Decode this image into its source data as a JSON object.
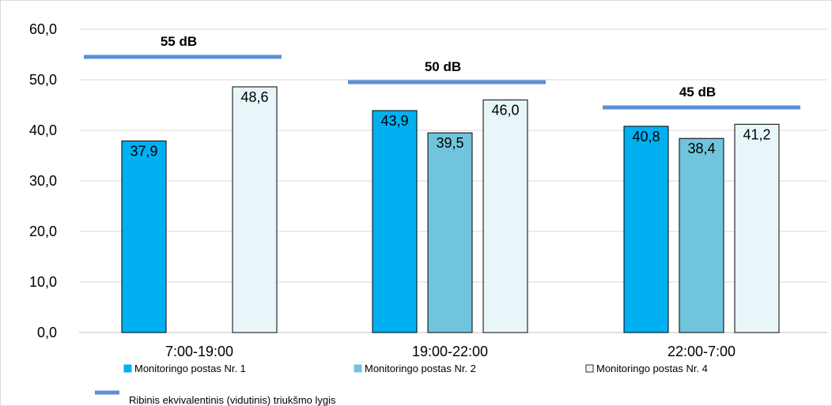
{
  "chart_data": {
    "type": "bar",
    "categories": [
      "7:00-19:00",
      "19:00-22:00",
      "22:00-7:00"
    ],
    "series": [
      {
        "name": "Monitoringo postas Nr. 1",
        "color": "#00b0f0",
        "values": [
          37.9,
          43.9,
          40.8
        ],
        "labels": [
          "37,9",
          "43,9",
          "40,8"
        ]
      },
      {
        "name": "Monitoringo postas Nr. 2",
        "color": "#70c4dc",
        "values": [
          null,
          39.5,
          38.4
        ],
        "labels": [
          "",
          "39,5",
          "38,4"
        ]
      },
      {
        "name": "Monitoringo postas Nr. 4",
        "color": "#e8f6fa",
        "values": [
          48.6,
          46.0,
          41.2
        ],
        "labels": [
          "48,6",
          "46,0",
          "41,2"
        ]
      }
    ],
    "limit_series": {
      "name": "Ribinis ekvivalentinis (vidutinis) triukšmo lygis",
      "color": "#5b8fd6",
      "values": [
        55,
        50,
        45
      ],
      "labels": [
        "55 dB",
        "50 dB",
        "45 dB"
      ]
    },
    "ylim": [
      0,
      60
    ],
    "yticks": [
      0,
      10,
      20,
      30,
      40,
      50,
      60
    ],
    "ytick_labels": [
      "0,0",
      "10,0",
      "20,0",
      "30,0",
      "40,0",
      "50,0",
      "60,0"
    ],
    "grid": true,
    "legend_position": "bottom",
    "title": "",
    "xlabel": "",
    "ylabel": ""
  }
}
